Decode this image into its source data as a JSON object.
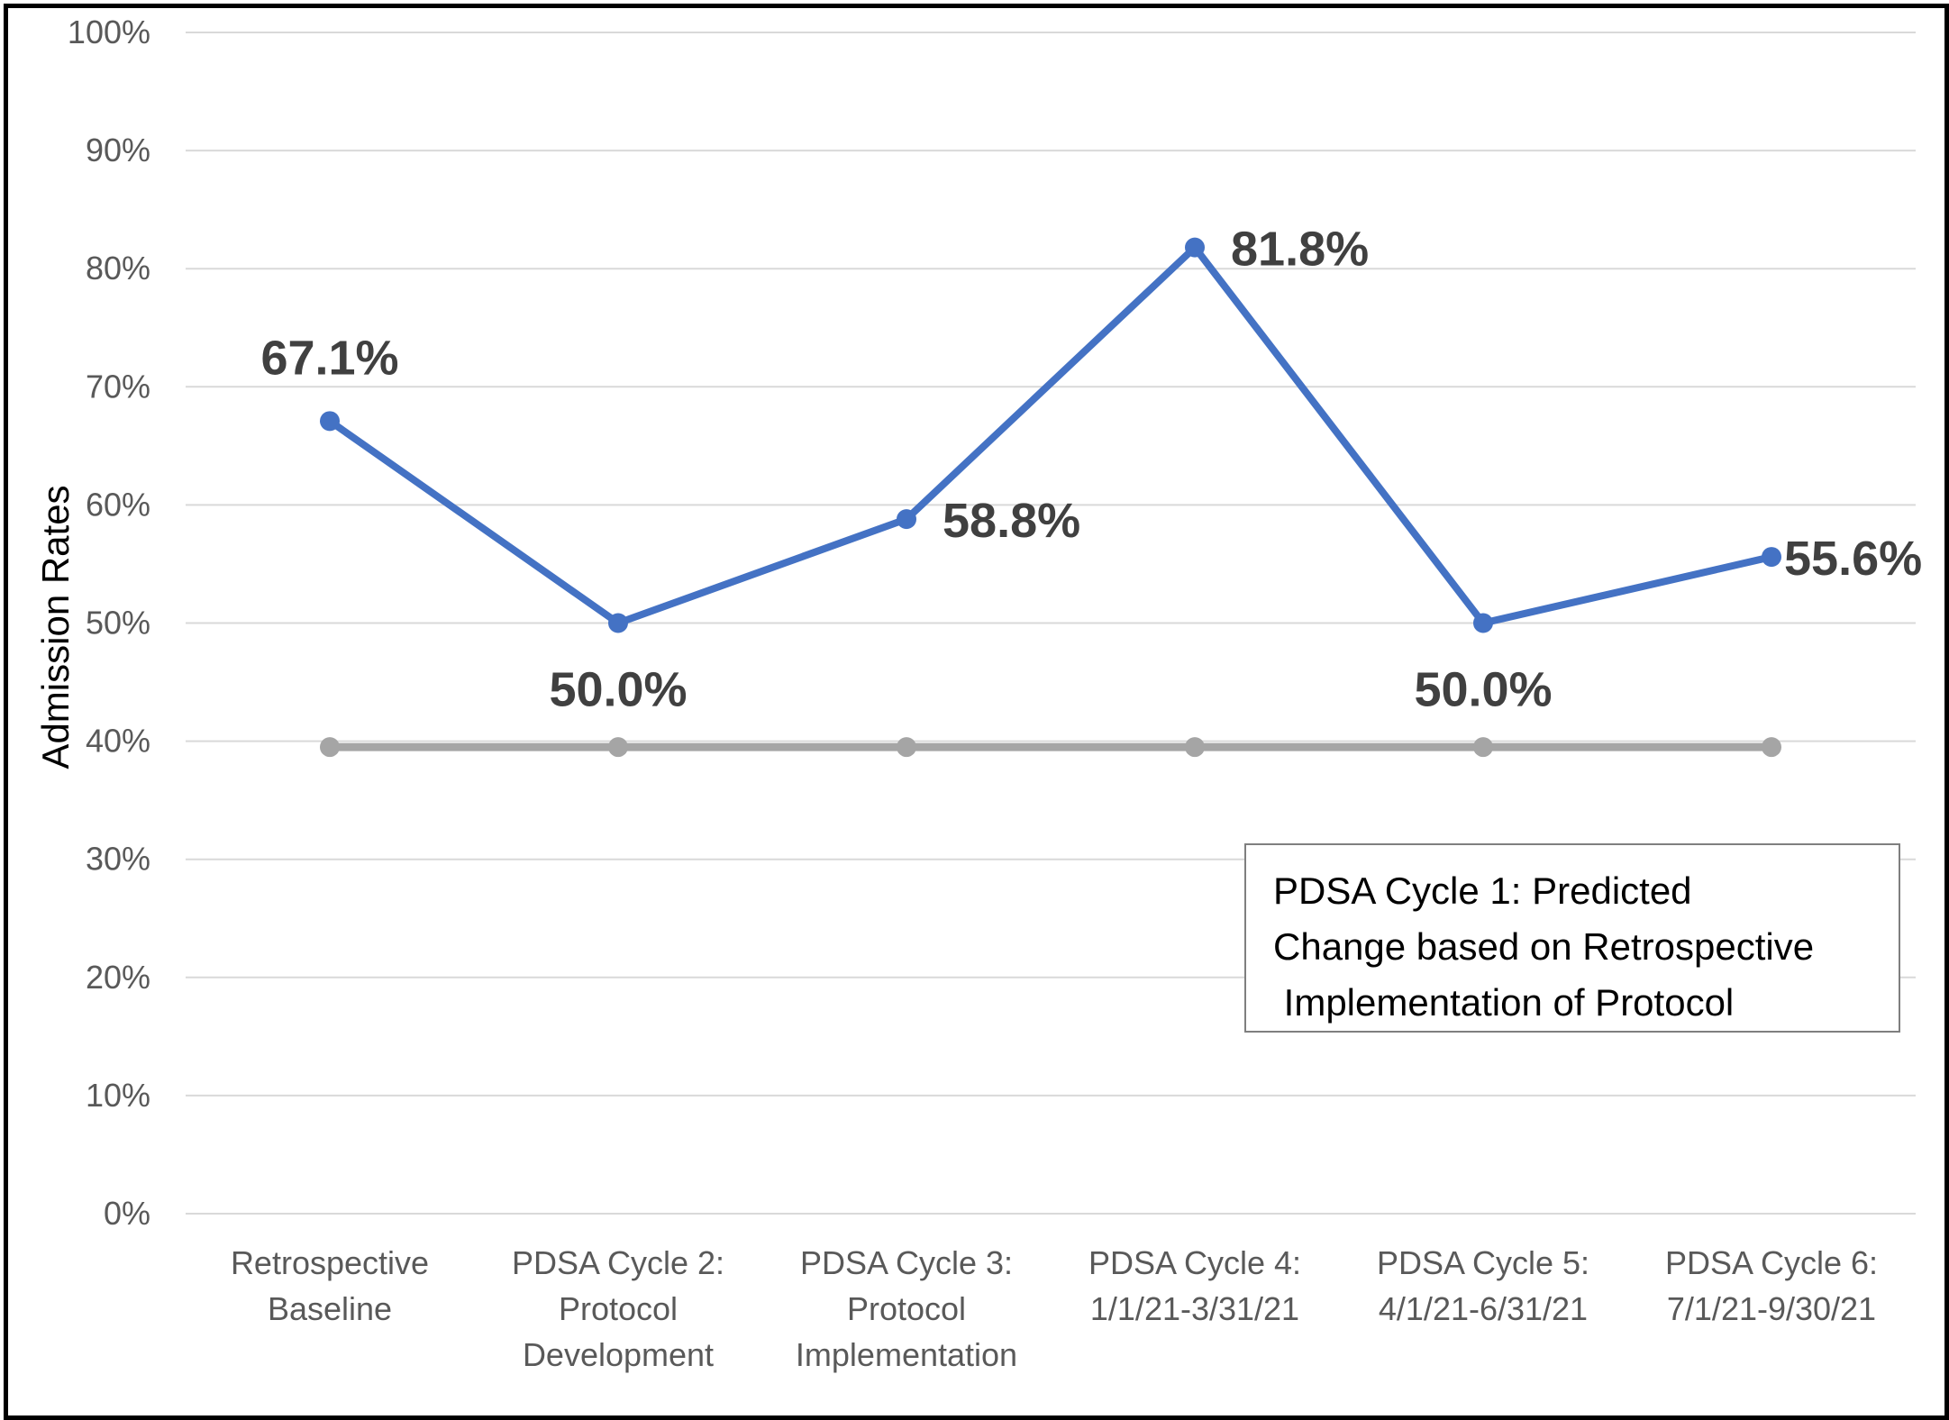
{
  "chart_data": {
    "type": "line",
    "ylabel": "Admission Rates",
    "ylim": [
      0,
      100
    ],
    "yticks": [
      "0%",
      "10%",
      "20%",
      "30%",
      "40%",
      "50%",
      "60%",
      "70%",
      "80%",
      "90%",
      "100%"
    ],
    "categories": [
      [
        "Retrospective",
        "Baseline"
      ],
      [
        "PDSA Cycle 2:",
        "Protocol",
        "Development"
      ],
      [
        "PDSA Cycle 3:",
        "Protocol",
        "Implementation"
      ],
      [
        "PDSA Cycle 4:",
        "1/1/21-3/31/21"
      ],
      [
        "PDSA Cycle 5:",
        "4/1/21-6/31/21"
      ],
      [
        "PDSA Cycle 6:",
        "7/1/21-9/30/21"
      ]
    ],
    "series": [
      {
        "values": [
          67.1,
          50.0,
          58.8,
          81.8,
          50.0,
          55.6
        ],
        "labels": [
          "67.1%",
          "50.0%",
          "58.8%",
          "81.8%",
          "50.0%",
          "55.6%"
        ],
        "color": "#4472c4"
      },
      {
        "values": [
          39.5,
          39.5,
          39.5,
          39.5,
          39.5,
          39.5
        ],
        "color": "#a5a5a5"
      }
    ],
    "grid": true,
    "annotation": [
      "PDSA Cycle 1: Predicted",
      "Change based on Retrospective",
      " Implementation of Protocol"
    ]
  }
}
